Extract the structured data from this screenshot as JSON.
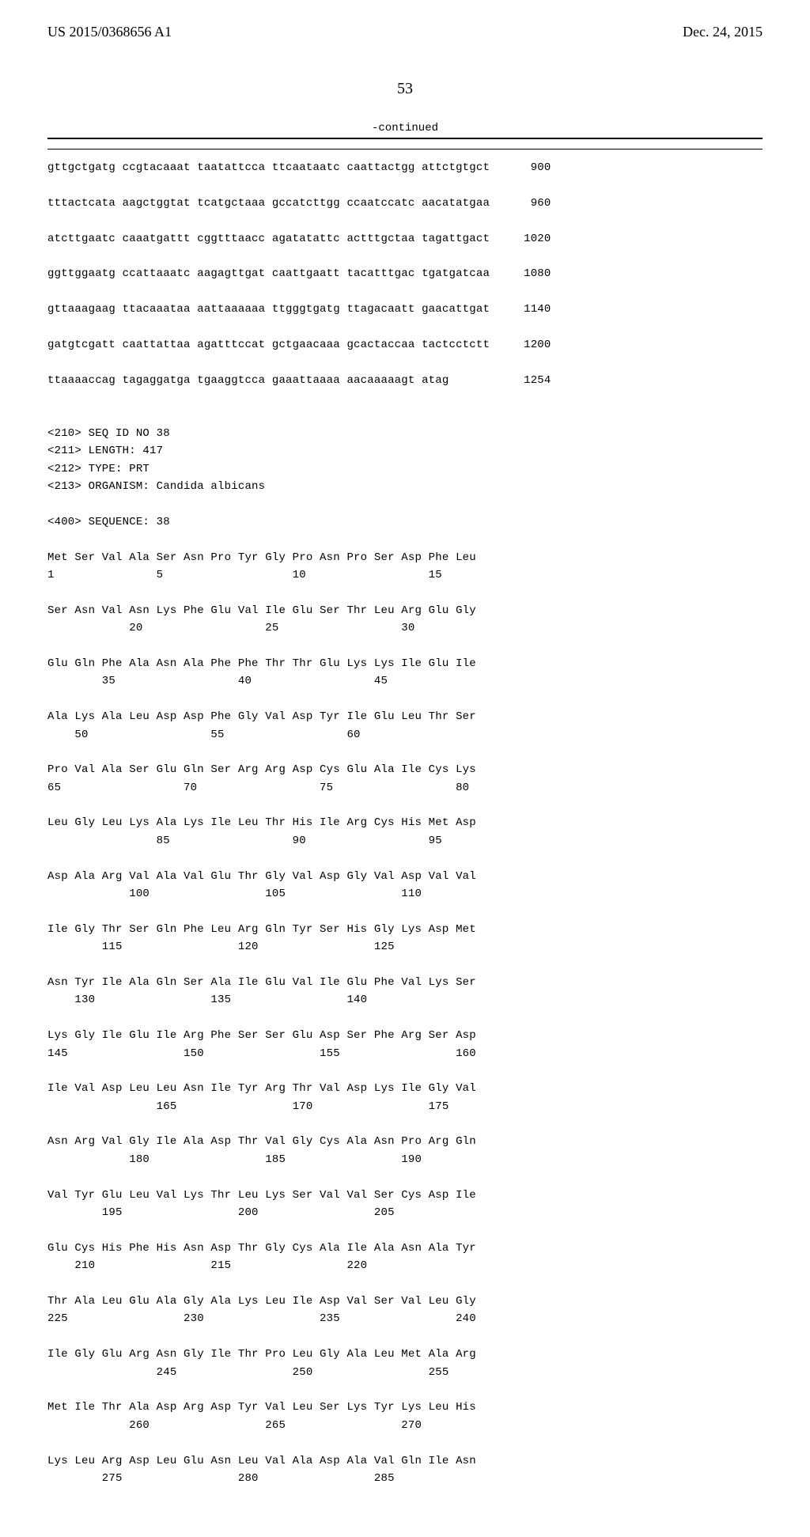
{
  "header": {
    "left": "US 2015/0368656 A1",
    "right": "Dec. 24, 2015"
  },
  "page_number": "53",
  "continued_label": "-continued",
  "dna": {
    "lines": [
      {
        "seq": "gttgctgatg ccgtacaaat taatattcca ttcaataatc caattactgg attctgtgct",
        "pos": "900"
      },
      {
        "seq": "tttactcata aagctggtat tcatgctaaa gccatcttgg ccaatccatc aacatatgaa",
        "pos": "960"
      },
      {
        "seq": "atcttgaatc caaatgattt cggtttaacc agatatattc actttgctaa tagattgact",
        "pos": "1020"
      },
      {
        "seq": "ggttggaatg ccattaaatc aagagttgat caattgaatt tacatttgac tgatgatcaa",
        "pos": "1080"
      },
      {
        "seq": "gttaaagaag ttacaaataa aattaaaaaa ttgggtgatg ttagacaatt gaacattgat",
        "pos": "1140"
      },
      {
        "seq": "gatgtcgatt caattattaa agatttccat gctgaacaaa gcactaccaa tactcctctt",
        "pos": "1200"
      },
      {
        "seq": "ttaaaaccag tagaggatga tgaaggtcca gaaattaaaa aacaaaaagt atag",
        "pos": "1254"
      }
    ]
  },
  "meta": {
    "l1": "<210> SEQ ID NO 38",
    "l2": "<211> LENGTH: 417",
    "l3": "<212> TYPE: PRT",
    "l4": "<213> ORGANISM: Candida albicans",
    "l5": "<400> SEQUENCE: 38"
  },
  "protein": [
    {
      "aa": "Met Ser Val Ala Ser Asn Pro Tyr Gly Pro Asn Pro Ser Asp Phe Leu",
      "num": "1               5                   10                  15"
    },
    {
      "aa": "Ser Asn Val Asn Lys Phe Glu Val Ile Glu Ser Thr Leu Arg Glu Gly",
      "num": "            20                  25                  30"
    },
    {
      "aa": "Glu Gln Phe Ala Asn Ala Phe Phe Thr Thr Glu Lys Lys Ile Glu Ile",
      "num": "        35                  40                  45"
    },
    {
      "aa": "Ala Lys Ala Leu Asp Asp Phe Gly Val Asp Tyr Ile Glu Leu Thr Ser",
      "num": "    50                  55                  60"
    },
    {
      "aa": "Pro Val Ala Ser Glu Gln Ser Arg Arg Asp Cys Glu Ala Ile Cys Lys",
      "num": "65                  70                  75                  80"
    },
    {
      "aa": "Leu Gly Leu Lys Ala Lys Ile Leu Thr His Ile Arg Cys His Met Asp",
      "num": "                85                  90                  95"
    },
    {
      "aa": "Asp Ala Arg Val Ala Val Glu Thr Gly Val Asp Gly Val Asp Val Val",
      "num": "            100                 105                 110"
    },
    {
      "aa": "Ile Gly Thr Ser Gln Phe Leu Arg Gln Tyr Ser His Gly Lys Asp Met",
      "num": "        115                 120                 125"
    },
    {
      "aa": "Asn Tyr Ile Ala Gln Ser Ala Ile Glu Val Ile Glu Phe Val Lys Ser",
      "num": "    130                 135                 140"
    },
    {
      "aa": "Lys Gly Ile Glu Ile Arg Phe Ser Ser Glu Asp Ser Phe Arg Ser Asp",
      "num": "145                 150                 155                 160"
    },
    {
      "aa": "Ile Val Asp Leu Leu Asn Ile Tyr Arg Thr Val Asp Lys Ile Gly Val",
      "num": "                165                 170                 175"
    },
    {
      "aa": "Asn Arg Val Gly Ile Ala Asp Thr Val Gly Cys Ala Asn Pro Arg Gln",
      "num": "            180                 185                 190"
    },
    {
      "aa": "Val Tyr Glu Leu Val Lys Thr Leu Lys Ser Val Val Ser Cys Asp Ile",
      "num": "        195                 200                 205"
    },
    {
      "aa": "Glu Cys His Phe His Asn Asp Thr Gly Cys Ala Ile Ala Asn Ala Tyr",
      "num": "    210                 215                 220"
    },
    {
      "aa": "Thr Ala Leu Glu Ala Gly Ala Lys Leu Ile Asp Val Ser Val Leu Gly",
      "num": "225                 230                 235                 240"
    },
    {
      "aa": "Ile Gly Glu Arg Asn Gly Ile Thr Pro Leu Gly Ala Leu Met Ala Arg",
      "num": "                245                 250                 255"
    },
    {
      "aa": "Met Ile Thr Ala Asp Arg Asp Tyr Val Leu Ser Lys Tyr Lys Leu His",
      "num": "            260                 265                 270"
    },
    {
      "aa": "Lys Leu Arg Asp Leu Glu Asn Leu Val Ala Asp Ala Val Gln Ile Asn",
      "num": "        275                 280                 285"
    }
  ]
}
